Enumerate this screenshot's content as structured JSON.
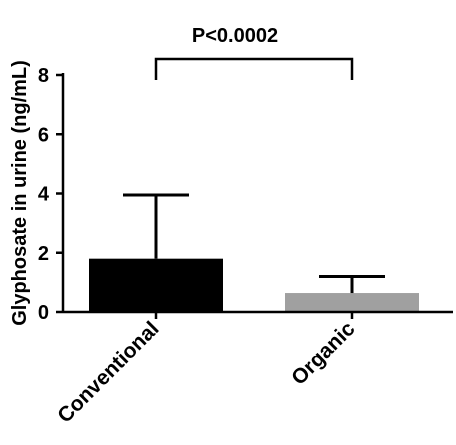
{
  "chart_data": {
    "type": "bar",
    "categories": [
      "Conventional",
      "Organic"
    ],
    "values": [
      1.8,
      0.64
    ],
    "error_upper": [
      3.95,
      1.2
    ],
    "colors": [
      "#000000",
      "#a0a0a0"
    ],
    "ylabel": "Glyphosate in urine (ng/mL)",
    "xlabel": "",
    "ylim": [
      0,
      8
    ],
    "yticks": [
      0,
      2,
      4,
      6,
      8
    ],
    "grid": false,
    "annotation": "P<0.0002"
  }
}
